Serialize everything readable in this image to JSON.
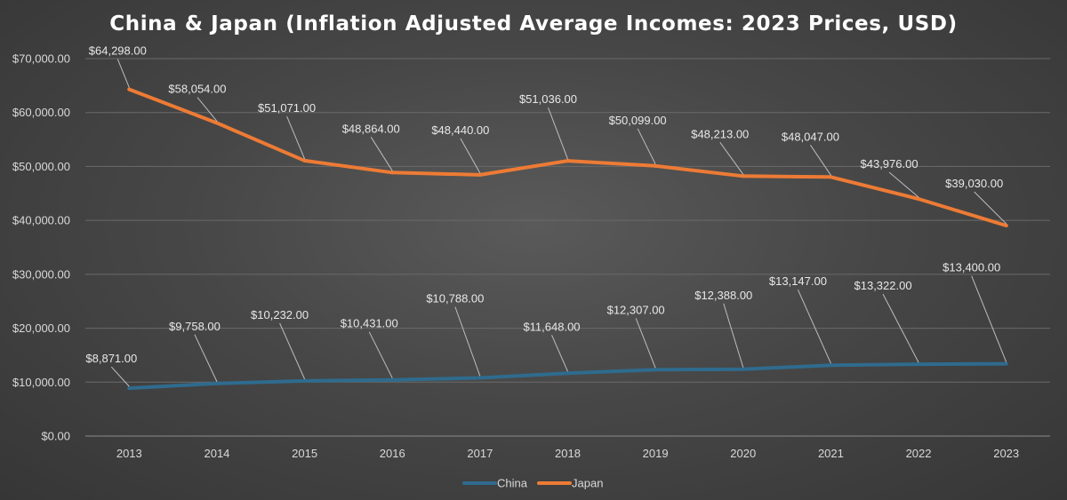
{
  "chart_data": {
    "type": "line",
    "title": "China & Japan (Inflation Adjusted Average Incomes: 2023 Prices, USD)",
    "xlabel": "",
    "ylabel": "",
    "categories": [
      "2013",
      "2014",
      "2015",
      "2016",
      "2017",
      "2018",
      "2019",
      "2020",
      "2021",
      "2022",
      "2023"
    ],
    "ylim": [
      0,
      70000
    ],
    "yticks": [
      0,
      10000,
      20000,
      30000,
      40000,
      50000,
      60000,
      70000
    ],
    "ytick_labels": [
      "$0.00",
      "$10,000.00",
      "$20,000.00",
      "$30,000.00",
      "$40,000.00",
      "$50,000.00",
      "$60,000.00",
      "$70,000.00"
    ],
    "grid": true,
    "legend_position": "bottom",
    "series": [
      {
        "name": "China",
        "color": "#2f6b8e",
        "values": [
          8871,
          9758,
          10232,
          10431,
          10788,
          11648,
          12307,
          12388,
          13147,
          13322,
          13400
        ],
        "labels": [
          "$8,871.00",
          "$9,758.00",
          "$10,232.00",
          "$10,431.00",
          "$10,788.00",
          "$11,648.00",
          "$12,307.00",
          "$12,388.00",
          "$13,147.00",
          "$13,322.00",
          "$13,400.00"
        ]
      },
      {
        "name": "Japan",
        "color": "#ed7b35",
        "values": [
          64298,
          58054,
          51071,
          48864,
          48440,
          51036,
          50099,
          48213,
          48047,
          43976,
          39030
        ],
        "labels": [
          "$64,298.00",
          "$58,054.00",
          "$51,071.00",
          "$48,864.00",
          "$48,440.00",
          "$51,036.00",
          "$50,099.00",
          "$48,213.00",
          "$48,047.00",
          "$43,976.00",
          "$39,030.00"
        ]
      }
    ]
  }
}
